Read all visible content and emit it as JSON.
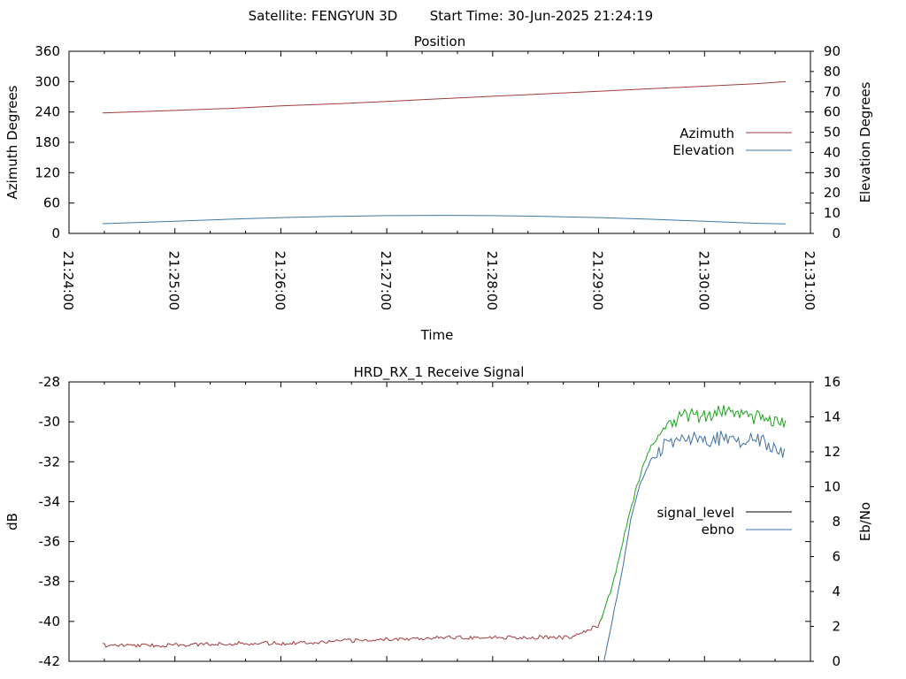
{
  "header": {
    "satellite_text": "Satellite: FENGYUN 3D",
    "start_time_text": "Start Time: 30-Jun-2025 21:24:19"
  },
  "colors": {
    "azimuth": "#a33a3a",
    "elevation": "#3a7aa8",
    "signal_level_legend": "#000000",
    "signal_level_line": "#a33a3a",
    "signal_level_high": "#1aa31a",
    "ebno": "#3a6fa8",
    "axis": "#000000"
  },
  "chart_data": [
    {
      "type": "line",
      "title": "Position",
      "xlabel": "Time",
      "ylabel": "Azimuth Degrees",
      "y2label": "Elevation Degrees",
      "xlim": [
        "21:24:00",
        "21:31:00"
      ],
      "x_tick_labels": [
        "21:24:00",
        "21:25:00",
        "21:26:00",
        "21:27:00",
        "21:28:00",
        "21:29:00",
        "21:30:00",
        "21:31:00"
      ],
      "ylim": [
        0,
        360
      ],
      "y_tick_labels": [
        "360",
        "300",
        "240",
        "180",
        "120",
        "60",
        "0"
      ],
      "y2lim": [
        0,
        90
      ],
      "y2_tick_labels": [
        "90",
        "80",
        "70",
        "60",
        "50",
        "40",
        "30",
        "20",
        "10",
        "0"
      ],
      "legend_position": "right",
      "series": [
        {
          "name": "Azimuth",
          "axis": "y1",
          "x": [
            "21:24:19",
            "21:25:00",
            "21:25:30",
            "21:26:00",
            "21:26:30",
            "21:27:00",
            "21:27:30",
            "21:28:00",
            "21:28:30",
            "21:29:00",
            "21:29:30",
            "21:30:00",
            "21:30:30",
            "21:30:46"
          ],
          "values": [
            238,
            243,
            247,
            252,
            256,
            261,
            266,
            271,
            276,
            281,
            286,
            291,
            296,
            300
          ]
        },
        {
          "name": "Elevation",
          "axis": "y2",
          "x": [
            "21:24:19",
            "21:25:00",
            "21:25:30",
            "21:26:00",
            "21:26:30",
            "21:27:00",
            "21:27:30",
            "21:28:00",
            "21:28:30",
            "21:29:00",
            "21:29:30",
            "21:30:00",
            "21:30:30",
            "21:30:46"
          ],
          "values": [
            4.8,
            6.0,
            7.0,
            7.8,
            8.4,
            8.8,
            8.9,
            8.8,
            8.4,
            7.8,
            7.0,
            6.0,
            5.0,
            4.7
          ]
        }
      ]
    },
    {
      "type": "line",
      "title": "HRD_RX_1 Receive Signal",
      "ylabel": "dB",
      "y2label": "Eb/No",
      "xlim": [
        "21:24:00",
        "21:31:00"
      ],
      "ylim": [
        -42,
        -28
      ],
      "y_tick_labels": [
        "-28",
        "-30",
        "-32",
        "-34",
        "-36",
        "-38",
        "-40",
        "-42"
      ],
      "y2lim": [
        0,
        16
      ],
      "y2_tick_labels": [
        "16",
        "14",
        "12",
        "10",
        "8",
        "6",
        "4",
        "2",
        "0"
      ],
      "legend_position": "right",
      "series": [
        {
          "name": "signal_level",
          "axis": "y1",
          "x": [
            "21:24:19",
            "21:25:00",
            "21:25:30",
            "21:26:00",
            "21:26:30",
            "21:27:00",
            "21:27:30",
            "21:28:00",
            "21:28:30",
            "21:28:45",
            "21:29:00",
            "21:29:05",
            "21:29:10",
            "21:29:15",
            "21:29:20",
            "21:29:25",
            "21:29:30",
            "21:29:40",
            "21:29:50",
            "21:30:00",
            "21:30:10",
            "21:30:20",
            "21:30:30",
            "21:30:40",
            "21:30:46"
          ],
          "values": [
            -41.2,
            -41.2,
            -41.1,
            -41.1,
            -41.0,
            -40.9,
            -40.8,
            -40.8,
            -40.8,
            -40.8,
            -40.2,
            -39.0,
            -37.5,
            -35.5,
            -33.8,
            -32.2,
            -31.2,
            -30.0,
            -29.6,
            -29.8,
            -29.5,
            -29.8,
            -29.6,
            -30.0,
            -30.2
          ]
        },
        {
          "name": "ebno",
          "axis": "y2",
          "x": [
            "21:29:03",
            "21:29:08",
            "21:29:13",
            "21:29:18",
            "21:29:23",
            "21:29:28",
            "21:29:33",
            "21:29:40",
            "21:29:50",
            "21:30:00",
            "21:30:10",
            "21:30:20",
            "21:30:30",
            "21:30:40",
            "21:30:46"
          ],
          "values": [
            0.0,
            2.5,
            5.0,
            8.0,
            10.0,
            11.2,
            12.0,
            12.6,
            12.8,
            12.6,
            12.8,
            12.7,
            12.7,
            12.2,
            11.8
          ]
        }
      ]
    }
  ]
}
